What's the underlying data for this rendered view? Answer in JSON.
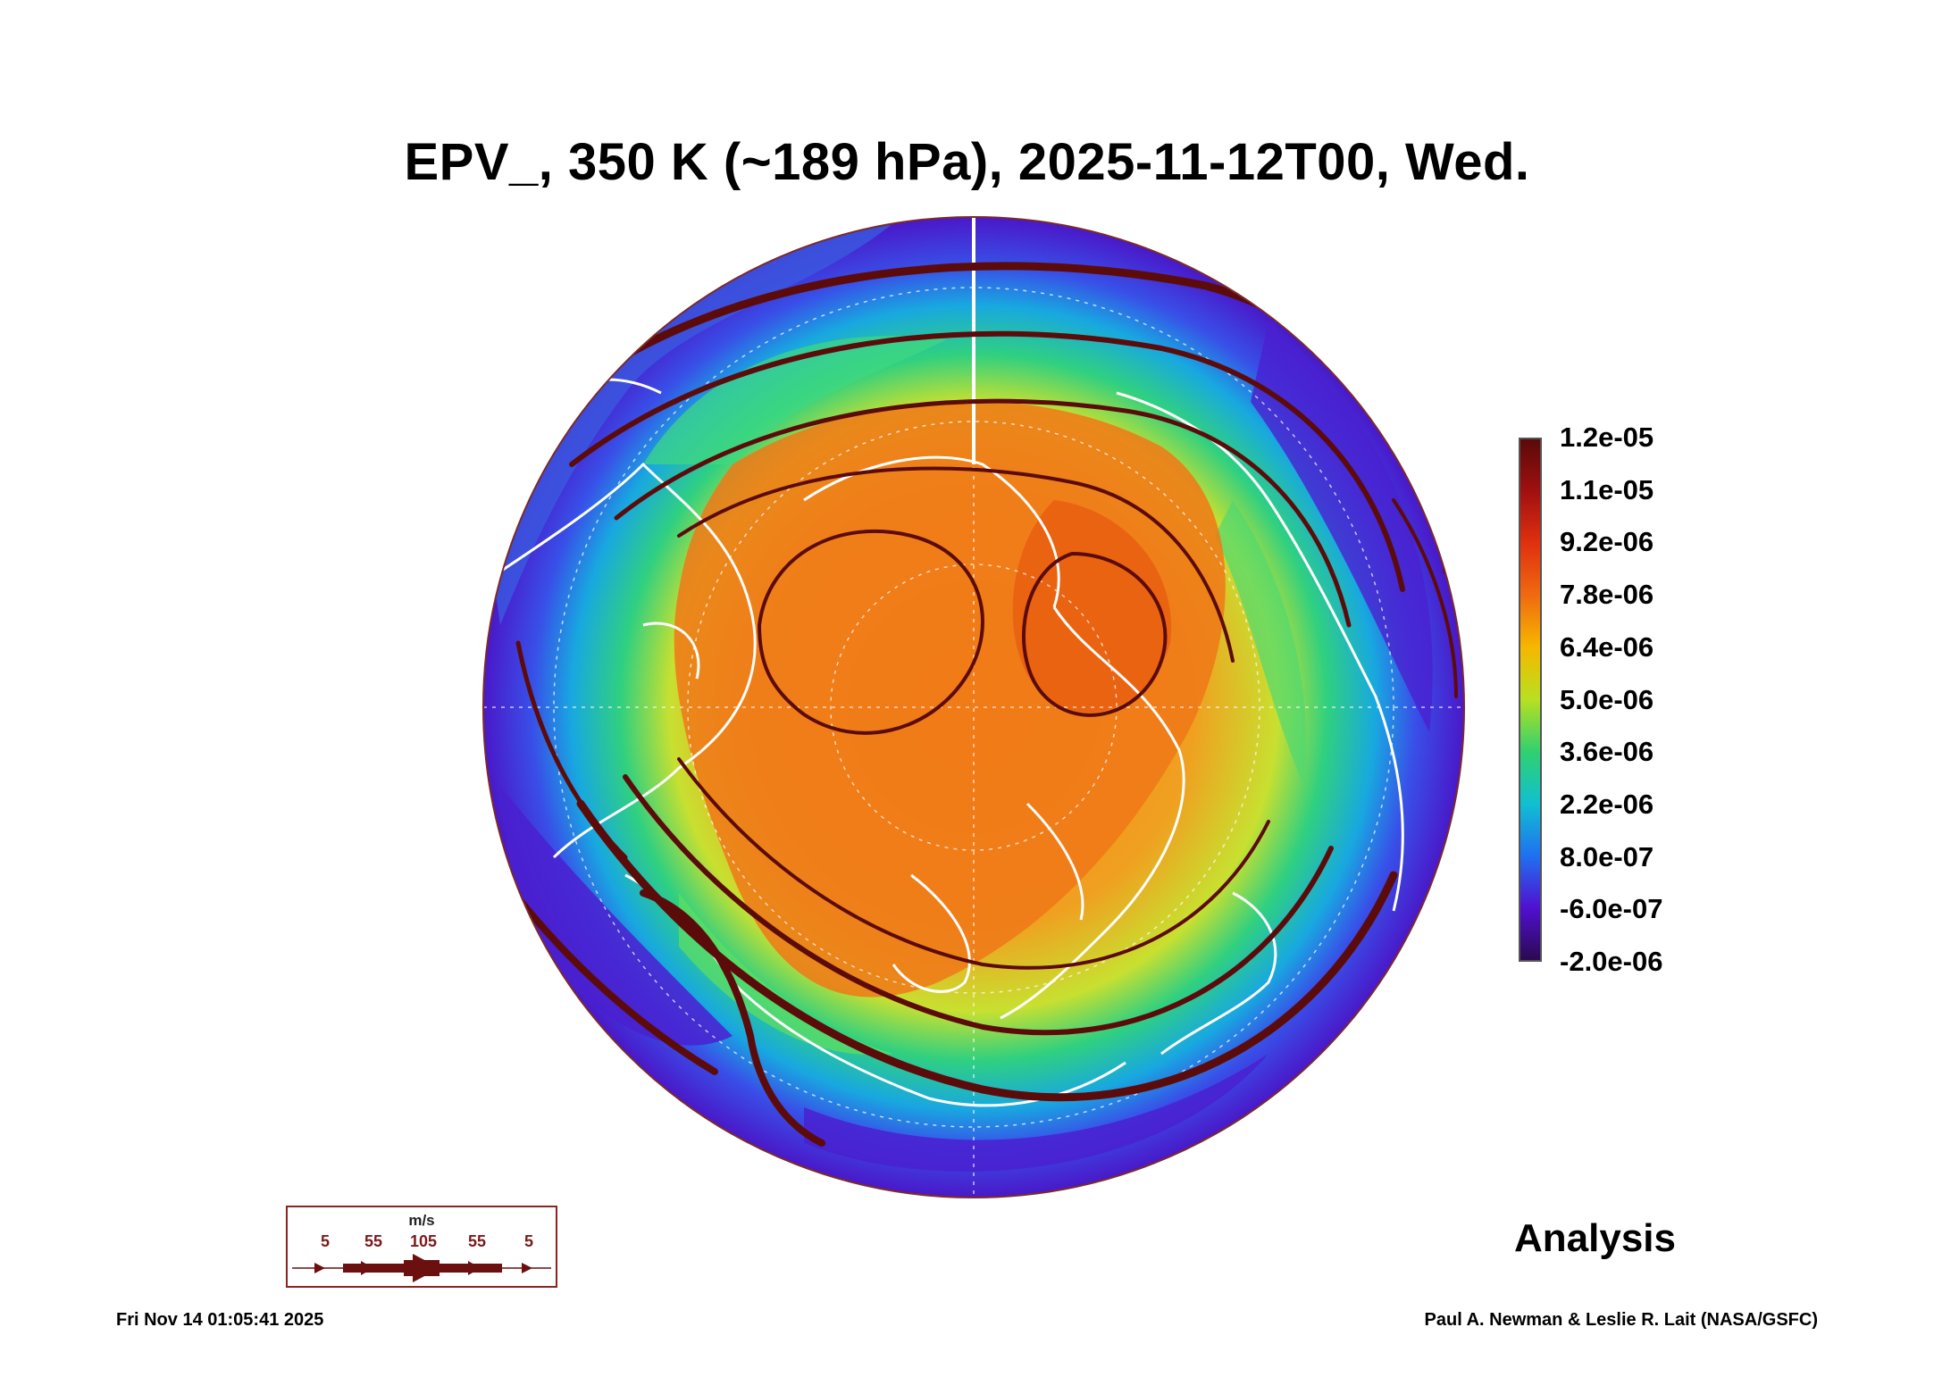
{
  "title": "EPV_, 350 K (~189 hPa), 2025-11-12T00, Wed.",
  "colorbar": {
    "labels": [
      "1.2e-05",
      "1.1e-05",
      "9.2e-06",
      "7.8e-06",
      "6.4e-06",
      "5.0e-06",
      "3.6e-06",
      "2.2e-06",
      "8.0e-07",
      "-6.0e-07",
      "-2.0e-06"
    ],
    "colors": [
      "#5a0a0a",
      "#a01010",
      "#e03010",
      "#f06a10",
      "#f5b800",
      "#b8e020",
      "#30d070",
      "#10c0d0",
      "#2070f0",
      "#5010d0",
      "#2a0a50"
    ]
  },
  "analysis_label": "Analysis",
  "wind_legend": {
    "unit": "m/s",
    "speeds": [
      "5",
      "55",
      "105",
      "55",
      "5"
    ],
    "arrow_color": "#6b0f0f"
  },
  "footer": {
    "timestamp": "Fri Nov 14 01:05:41 2025",
    "credit": "Paul A. Newman & Leslie R. Lait (NASA/GSFC)"
  },
  "map": {
    "projection": "north-polar-stereographic",
    "streamline_color": "#5c0b0b",
    "coastline_color": "#ffffff"
  }
}
